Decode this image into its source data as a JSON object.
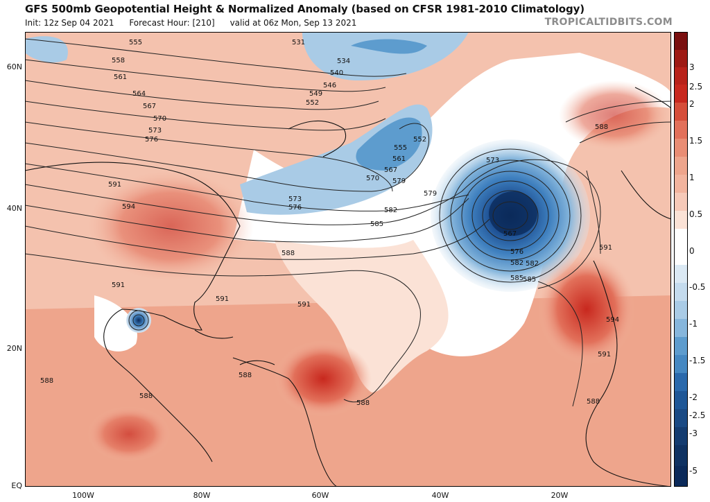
{
  "header": {
    "title": "GFS 500mb Geopotential Height & Normalized Anomaly (based on CFSR 1981-2010 Climatology)",
    "init": "Init: 12z Sep 04 2021",
    "forecast_hour": "Forecast Hour: [210]",
    "valid": "valid at 06z Mon, Sep 13 2021",
    "watermark": "TROPICALTIDBITS.COM"
  },
  "map": {
    "lat_labels": [
      "60N",
      "40N",
      "20N",
      "EQ"
    ],
    "lon_labels": [
      "100W",
      "80W",
      "60W",
      "40W",
      "20W"
    ],
    "contour_labels": [
      "531",
      "534",
      "540",
      "546",
      "549",
      "552",
      "555",
      "558",
      "561",
      "564",
      "567",
      "570",
      "573",
      "576",
      "579",
      "582",
      "585",
      "588",
      "591",
      "594",
      "552",
      "555",
      "561",
      "567",
      "570",
      "573",
      "576",
      "579",
      "582",
      "585",
      "573",
      "567",
      "576",
      "582",
      "585",
      "588",
      "591",
      "594",
      "591",
      "588",
      "591",
      "591",
      "591",
      "588",
      "588",
      "588",
      "588"
    ]
  },
  "colorbar": {
    "labels": [
      "3",
      "2.5",
      "2",
      "1.5",
      "1",
      "0.5",
      "0",
      "-0.5",
      "-1",
      "-1.5",
      "-2",
      "-2.5",
      "-3",
      "-5"
    ],
    "colors": {
      "pos_max": "#7a1010",
      "pos_high": "#c8281e",
      "pos_mid": "#e2705a",
      "pos_low": "#f2b49e",
      "pos_min": "#fbe2d6",
      "neutral": "#ffffff",
      "neg_min": "#dbe9f4",
      "neg_low": "#a9cbe6",
      "neg_mid": "#5d9cce",
      "neg_high": "#2a69ac",
      "neg_max": "#0b2a5a"
    }
  }
}
